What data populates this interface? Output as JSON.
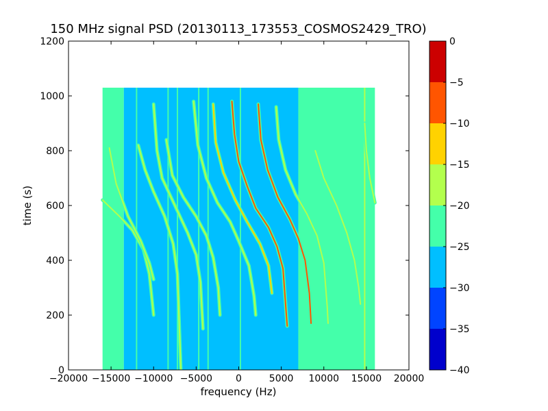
{
  "chart_data": {
    "type": "heatmap",
    "title": "150 MHz signal PSD (20130113_173553_COSMOS2429_TRO)",
    "xlabel": "frequency (Hz)",
    "ylabel": "time (s)",
    "xlim": [
      -20000,
      20000
    ],
    "ylim": [
      0,
      1200
    ],
    "xticks": [
      -20000,
      -15000,
      -10000,
      -5000,
      0,
      5000,
      10000,
      15000,
      20000
    ],
    "yticks": [
      0,
      200,
      400,
      600,
      800,
      1000,
      1200
    ],
    "xtick_labels": [
      "−20000",
      "−15000",
      "−10000",
      "−5000",
      "0",
      "5000",
      "10000",
      "15000",
      "20000"
    ],
    "ytick_labels": [
      "0",
      "200",
      "400",
      "600",
      "800",
      "1000",
      "1200"
    ],
    "data_extent": {
      "x": [
        -16000,
        16000
      ],
      "y": [
        0,
        1030
      ]
    },
    "colorbar": {
      "range": [
        -40,
        0
      ],
      "ticks": [
        0,
        -5,
        -10,
        -15,
        -20,
        -25,
        -30,
        -35,
        -40
      ],
      "tick_labels": [
        "0",
        "−5",
        "−10",
        "−15",
        "−20",
        "−25",
        "−30",
        "−35",
        "−40"
      ],
      "levels": [
        {
          "from": -40,
          "to": -35,
          "color": "#0000cc"
        },
        {
          "from": -35,
          "to": -30,
          "color": "#0044ff"
        },
        {
          "from": -30,
          "to": -25,
          "color": "#00bfff"
        },
        {
          "from": -25,
          "to": -20,
          "color": "#44ffaa"
        },
        {
          "from": -20,
          "to": -15,
          "color": "#b3ff4d"
        },
        {
          "from": -15,
          "to": -10,
          "color": "#ffd200"
        },
        {
          "from": -10,
          "to": -5,
          "color": "#ff5500"
        },
        {
          "from": -5,
          "to": 0,
          "color": "#cc0000"
        }
      ]
    },
    "background_regions": [
      {
        "x": [
          -16000,
          -13500
        ],
        "level": -22.5
      },
      {
        "x": [
          -13500,
          7000
        ],
        "level": -27.5
      },
      {
        "x": [
          7000,
          16000
        ],
        "level": -22.5
      }
    ],
    "vertical_lines": [
      {
        "x": -12000,
        "level": -22.5
      },
      {
        "x": -8300,
        "level": -22.5
      },
      {
        "x": -7200,
        "level": -22.5
      },
      {
        "x": -4700,
        "level": -22.5
      },
      {
        "x": -3600,
        "level": -22.5
      },
      {
        "x": 200,
        "level": -22.5
      },
      {
        "x": 14800,
        "level": -17.5
      }
    ],
    "signal_traces": [
      {
        "points": [
          [
            -16000,
            620
          ],
          [
            -14000,
            560
          ],
          [
            -12500,
            510
          ],
          [
            -11200,
            440
          ],
          [
            -10500,
            350
          ],
          [
            -10000,
            200
          ]
        ],
        "level": -17.5
      },
      {
        "points": [
          [
            -15200,
            810
          ],
          [
            -14400,
            680
          ],
          [
            -13000,
            560
          ],
          [
            -11500,
            470
          ],
          [
            -10500,
            390
          ],
          [
            -10000,
            330
          ]
        ],
        "level": -17.5
      },
      {
        "points": [
          [
            -11800,
            820
          ],
          [
            -11000,
            730
          ],
          [
            -10000,
            650
          ],
          [
            -8700,
            560
          ],
          [
            -7700,
            460
          ],
          [
            -7200,
            350
          ],
          [
            -6800,
            0
          ]
        ],
        "level": -17.5
      },
      {
        "points": [
          [
            -10000,
            970
          ],
          [
            -9600,
            800
          ],
          [
            -9000,
            700
          ],
          [
            -7500,
            600
          ],
          [
            -6000,
            500
          ],
          [
            -5000,
            420
          ],
          [
            -4500,
            320
          ],
          [
            -4200,
            150
          ]
        ],
        "level": -17.5
      },
      {
        "points": [
          [
            -8500,
            840
          ],
          [
            -7800,
            710
          ],
          [
            -6500,
            630
          ],
          [
            -5000,
            560
          ],
          [
            -3800,
            490
          ],
          [
            -3000,
            410
          ],
          [
            -2400,
            300
          ],
          [
            -2200,
            200
          ]
        ],
        "level": -17.5
      },
      {
        "points": [
          [
            -5300,
            980
          ],
          [
            -4800,
            820
          ],
          [
            -3800,
            700
          ],
          [
            -2500,
            610
          ],
          [
            -1000,
            540
          ],
          [
            0,
            470
          ],
          [
            1200,
            380
          ],
          [
            1800,
            270
          ],
          [
            2000,
            200
          ]
        ],
        "level": -17.5
      },
      {
        "points": [
          [
            -3000,
            970
          ],
          [
            -2700,
            830
          ],
          [
            -1800,
            720
          ],
          [
            -400,
            620
          ],
          [
            1000,
            540
          ],
          [
            2500,
            460
          ],
          [
            3500,
            380
          ],
          [
            3900,
            280
          ]
        ],
        "level": -12.5
      },
      {
        "points": [
          [
            -800,
            980
          ],
          [
            -500,
            860
          ],
          [
            0,
            760
          ],
          [
            1000,
            670
          ],
          [
            2000,
            590
          ],
          [
            3500,
            520
          ],
          [
            4500,
            450
          ],
          [
            5200,
            370
          ],
          [
            5600,
            200
          ],
          [
            5700,
            160
          ]
        ],
        "level": -7.5
      },
      {
        "points": [
          [
            2300,
            970
          ],
          [
            2600,
            840
          ],
          [
            3400,
            730
          ],
          [
            4600,
            630
          ],
          [
            6000,
            550
          ],
          [
            7000,
            480
          ],
          [
            7800,
            400
          ],
          [
            8300,
            280
          ],
          [
            8500,
            170
          ]
        ],
        "level": -7.5
      },
      {
        "points": [
          [
            4400,
            960
          ],
          [
            4700,
            840
          ],
          [
            5500,
            730
          ],
          [
            6700,
            640
          ],
          [
            8000,
            570
          ],
          [
            9200,
            490
          ],
          [
            10000,
            390
          ],
          [
            10400,
            230
          ],
          [
            10500,
            170
          ]
        ],
        "level": -17.5
      },
      {
        "points": [
          [
            9000,
            800
          ],
          [
            10000,
            700
          ],
          [
            11500,
            600
          ],
          [
            12700,
            500
          ],
          [
            13600,
            400
          ],
          [
            14100,
            300
          ],
          [
            14300,
            240
          ]
        ],
        "level": -17.5
      },
      {
        "points": [
          [
            14800,
            900
          ],
          [
            15000,
            800
          ],
          [
            15400,
            700
          ],
          [
            16000,
            610
          ]
        ],
        "level": -17.5
      }
    ]
  }
}
